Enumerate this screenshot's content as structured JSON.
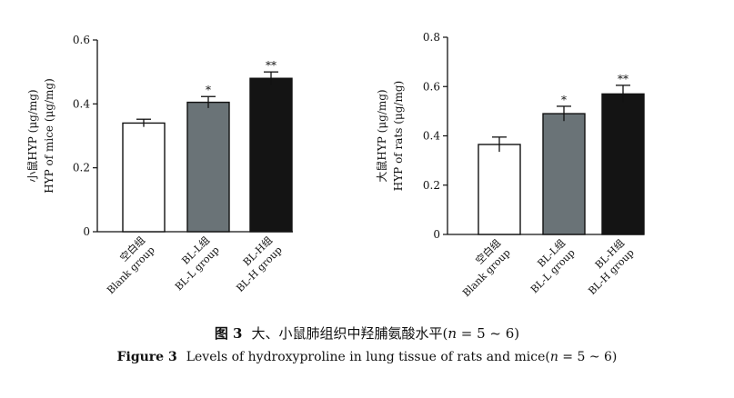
{
  "chart_data": [
    {
      "type": "bar",
      "ylabel_lines": [
        "小鼠HYP (μg/mg)",
        "HYP of mice (μg/mg)"
      ],
      "ylim": [
        0,
        0.6
      ],
      "yticks": [
        "0",
        "0.2",
        "0.4",
        "0.6"
      ],
      "ytick_values": [
        0,
        0.2,
        0.4,
        0.6
      ],
      "categories": [
        [
          "空白组",
          "Blank group"
        ],
        [
          "BL-L组",
          "BL-L group"
        ],
        [
          "BL-H组",
          "BL-H group"
        ]
      ],
      "values": [
        0.34,
        0.405,
        0.48
      ],
      "errors": [
        0.012,
        0.018,
        0.02
      ],
      "significance": [
        "",
        "*",
        "**"
      ],
      "bar_colors": [
        "#ffffff",
        "#6a7377",
        "#141414"
      ]
    },
    {
      "type": "bar",
      "ylabel_lines": [
        "大鼠HYP (μg/mg)",
        "HYP of rats (μg/mg)"
      ],
      "ylim": [
        0,
        0.8
      ],
      "yticks": [
        "0",
        "0.2",
        "0.4",
        "0.6",
        "0.8"
      ],
      "ytick_values": [
        0,
        0.2,
        0.4,
        0.6,
        0.8
      ],
      "categories": [
        [
          "空白组",
          "Blank group"
        ],
        [
          "BL-L组",
          "BL-L group"
        ],
        [
          "BL-H组",
          "BL-H group"
        ]
      ],
      "values": [
        0.365,
        0.49,
        0.57
      ],
      "errors": [
        0.03,
        0.03,
        0.035
      ],
      "significance": [
        "",
        "*",
        "**"
      ],
      "bar_colors": [
        "#ffffff",
        "#6a7377",
        "#141414"
      ]
    }
  ],
  "caption": {
    "cn_label": "图 3",
    "cn_text": "大、小鼠肺组织中羟脯氨酸水平(",
    "en_label": "Figure 3",
    "en_text": "Levels of hydroxyproline in lung tissue of rats and mice(",
    "n_symbol": "n",
    "n_range": " = 5 ~ 6)"
  }
}
